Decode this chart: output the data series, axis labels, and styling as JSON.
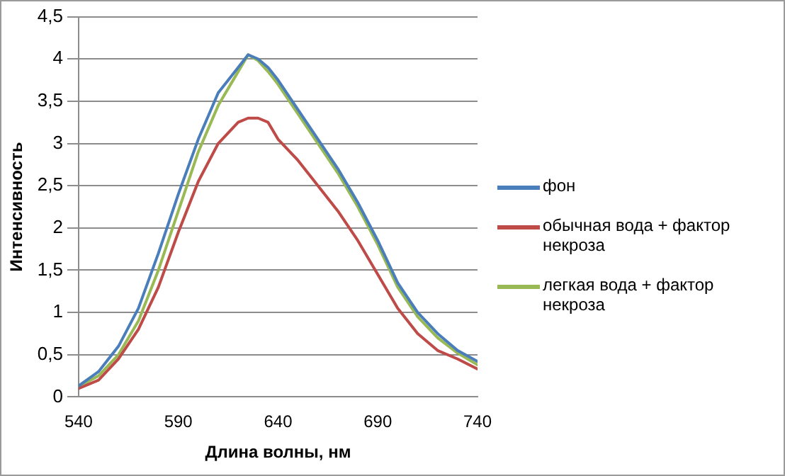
{
  "chart_data": {
    "type": "line",
    "xlabel": "Длина волны, нм",
    "ylabel": "Интенсивность",
    "x": [
      540,
      550,
      560,
      570,
      580,
      590,
      600,
      610,
      620,
      625,
      630,
      635,
      640,
      650,
      660,
      670,
      680,
      690,
      700,
      710,
      720,
      730,
      740
    ],
    "series": [
      {
        "name": "фон",
        "color": "#4a7ebb",
        "values": [
          0.13,
          0.3,
          0.6,
          1.05,
          1.7,
          2.4,
          3.05,
          3.6,
          3.9,
          4.05,
          4.0,
          3.9,
          3.75,
          3.4,
          3.05,
          2.7,
          2.3,
          1.85,
          1.35,
          1.0,
          0.75,
          0.55,
          0.42
        ]
      },
      {
        "name": "обычная вода + фактор некроза",
        "color": "#be4b48",
        "values": [
          0.1,
          0.2,
          0.45,
          0.8,
          1.3,
          1.95,
          2.55,
          3.0,
          3.25,
          3.3,
          3.3,
          3.25,
          3.05,
          2.8,
          2.5,
          2.2,
          1.85,
          1.45,
          1.05,
          0.75,
          0.55,
          0.45,
          0.33
        ]
      },
      {
        "name": "легкая вода + фактор некроза",
        "color": "#98b954",
        "values": [
          0.12,
          0.25,
          0.5,
          0.9,
          1.5,
          2.2,
          2.9,
          3.45,
          3.85,
          4.05,
          3.98,
          3.85,
          3.7,
          3.35,
          3.0,
          2.65,
          2.25,
          1.8,
          1.3,
          0.95,
          0.7,
          0.52,
          0.38
        ]
      }
    ],
    "xlim": [
      540,
      740
    ],
    "xticks": [
      540,
      590,
      640,
      690,
      740
    ],
    "ylim": [
      0,
      4.5
    ],
    "yticks": [
      0,
      {
        "value": 0.5,
        "label": "0,5"
      },
      1,
      {
        "value": 1.5,
        "label": "1,5"
      },
      2,
      {
        "value": 2.5,
        "label": "2,5"
      },
      3,
      {
        "value": 3.5,
        "label": "3,5"
      },
      4,
      {
        "value": 4.5,
        "label": "4,5"
      }
    ],
    "grid": "y",
    "legend": "right",
    "marker": "none",
    "line_style": "solid"
  }
}
